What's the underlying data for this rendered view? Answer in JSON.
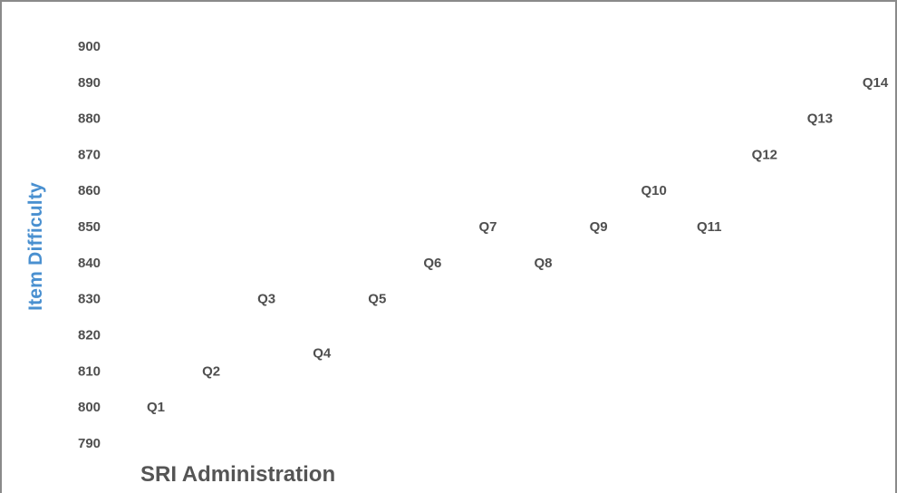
{
  "chart_data": {
    "type": "scatter",
    "title": "",
    "xlabel": "SRI Administration",
    "ylabel": "Item Difficulty",
    "ylim": [
      790,
      900
    ],
    "yticks": [
      900,
      890,
      880,
      870,
      860,
      850,
      840,
      830,
      820,
      810,
      800,
      790
    ],
    "grid": false,
    "legend": "none",
    "marker": "text-label",
    "points": [
      {
        "label": "Q1",
        "x": 1,
        "y": 800
      },
      {
        "label": "Q2",
        "x": 2,
        "y": 810
      },
      {
        "label": "Q3",
        "x": 3,
        "y": 830
      },
      {
        "label": "Q4",
        "x": 4,
        "y": 815
      },
      {
        "label": "Q5",
        "x": 5,
        "y": 830
      },
      {
        "label": "Q6",
        "x": 6,
        "y": 840
      },
      {
        "label": "Q7",
        "x": 7,
        "y": 850
      },
      {
        "label": "Q8",
        "x": 8,
        "y": 840
      },
      {
        "label": "Q9",
        "x": 9,
        "y": 850
      },
      {
        "label": "Q10",
        "x": 10,
        "y": 860
      },
      {
        "label": "Q11",
        "x": 11,
        "y": 850
      },
      {
        "label": "Q12",
        "x": 12,
        "y": 870
      },
      {
        "label": "Q13",
        "x": 13,
        "y": 880
      },
      {
        "label": "Q14",
        "x": 14,
        "y": 890
      }
    ],
    "colors": {
      "ylabel": "#4a90d0",
      "text": "#4f4f4f",
      "xlabel": "#555555",
      "frame": "#8a8a8a"
    }
  }
}
